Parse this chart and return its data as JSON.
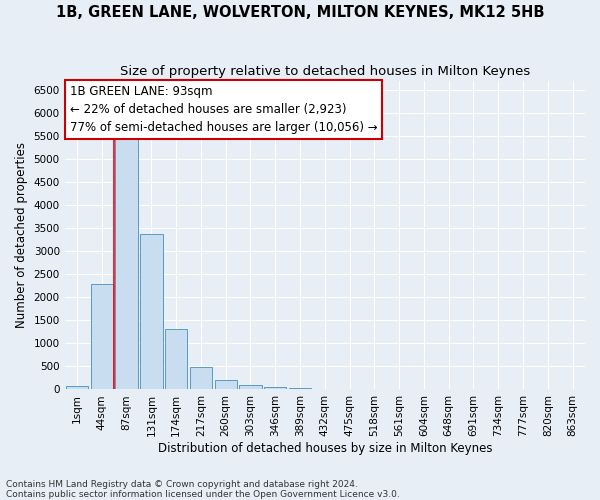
{
  "title1": "1B, GREEN LANE, WOLVERTON, MILTON KEYNES, MK12 5HB",
  "title2": "Size of property relative to detached houses in Milton Keynes",
  "xlabel": "Distribution of detached houses by size in Milton Keynes",
  "ylabel": "Number of detached properties",
  "categories": [
    "1sqm",
    "44sqm",
    "87sqm",
    "131sqm",
    "174sqm",
    "217sqm",
    "260sqm",
    "303sqm",
    "346sqm",
    "389sqm",
    "432sqm",
    "475sqm",
    "518sqm",
    "561sqm",
    "604sqm",
    "648sqm",
    "691sqm",
    "734sqm",
    "777sqm",
    "820sqm",
    "863sqm"
  ],
  "values": [
    70,
    2280,
    5430,
    3380,
    1310,
    480,
    195,
    100,
    50,
    30,
    10,
    5,
    0,
    0,
    0,
    0,
    0,
    0,
    0,
    0,
    0
  ],
  "bar_color": "#c8ddf0",
  "bar_edge_color": "#5a9ac5",
  "annotation_box_text_line1": "1B GREEN LANE: 93sqm",
  "annotation_box_text_line2": "← 22% of detached houses are smaller (2,923)",
  "annotation_box_text_line3": "77% of semi-detached houses are larger (10,056) →",
  "annotation_box_color": "white",
  "annotation_box_edge_color": "#cc0000",
  "vline_x_idx": 2,
  "ylim": [
    0,
    6700
  ],
  "yticks": [
    0,
    500,
    1000,
    1500,
    2000,
    2500,
    3000,
    3500,
    4000,
    4500,
    5000,
    5500,
    6000,
    6500
  ],
  "footer1": "Contains HM Land Registry data © Crown copyright and database right 2024.",
  "footer2": "Contains public sector information licensed under the Open Government Licence v3.0.",
  "bg_color": "#e8eef5",
  "grid_color": "white",
  "title_fontsize": 10.5,
  "subtitle_fontsize": 9.5,
  "axis_label_fontsize": 8.5,
  "tick_fontsize": 7.5,
  "annotation_fontsize": 8.5,
  "footer_fontsize": 6.5
}
